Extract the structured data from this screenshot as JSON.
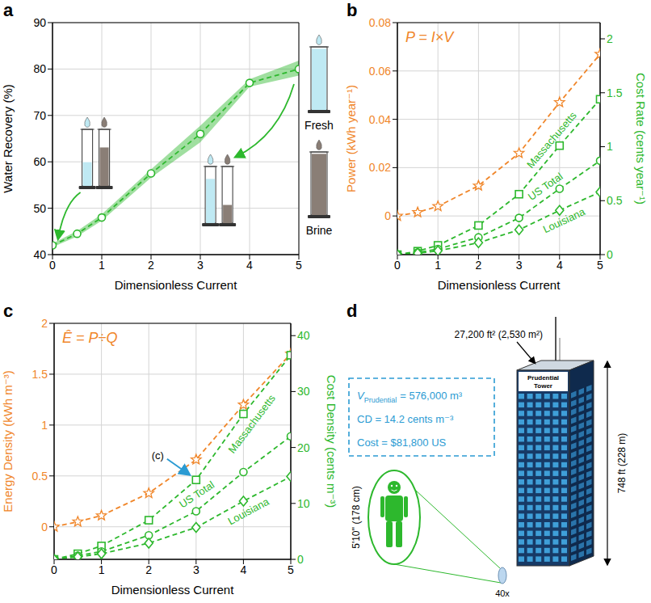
{
  "chart_data": [
    {
      "panel_label": "a",
      "type": "line",
      "x_label": "Dimensionless Current",
      "y_label": "Water Recovery (%)",
      "x": [
        0,
        0.5,
        1,
        2,
        3,
        4,
        5
      ],
      "values": [
        42,
        44.5,
        48,
        57.5,
        66,
        77,
        80
      ],
      "band_lower": [
        41.6,
        43.9,
        47.3,
        56.6,
        64.2,
        76.2,
        78.6
      ],
      "band_upper": [
        42.4,
        45.1,
        48.7,
        58.4,
        67.8,
        77.8,
        81.8
      ],
      "color": "#2db82d",
      "marker": "circle",
      "line_style": "dashed",
      "xlim": [
        0,
        5
      ],
      "xticks": [
        0,
        1,
        2,
        3,
        4,
        5
      ],
      "ylim": [
        40,
        90
      ],
      "yticks": [
        40,
        50,
        60,
        70,
        80,
        90
      ],
      "grid": true,
      "annotations": [
        "Fresh",
        "Brine"
      ]
    },
    {
      "panel_label": "b",
      "type": "line",
      "x_label": "Dimensionless Current",
      "y_label": "Power (kWh year⁻¹)",
      "y2_label": "Cost Rate (cents year⁻¹)",
      "annotations": [
        "P = I×V"
      ],
      "x": [
        0,
        0.5,
        1,
        2,
        3,
        4,
        5
      ],
      "series": [
        {
          "color": "#f0862a",
          "marker": "star",
          "line_style": "dashed",
          "values": [
            0,
            0.0015,
            0.004,
            0.0125,
            0.026,
            0.047,
            0.067
          ]
        },
        {
          "name": "Massachusetts",
          "color": "#2db82d",
          "marker": "square",
          "line_style": "dashed",
          "axis": "y2",
          "values": [
            0,
            0.032,
            0.086,
            0.27,
            0.56,
            1.01,
            1.44
          ]
        },
        {
          "name": "US Total",
          "color": "#2db82d",
          "marker": "circle",
          "line_style": "dashed",
          "axis": "y2",
          "values": [
            0,
            0.02,
            0.052,
            0.16,
            0.34,
            0.61,
            0.87
          ]
        },
        {
          "name": "Louisiana",
          "color": "#2db82d",
          "marker": "diamond",
          "line_style": "dashed",
          "axis": "y2",
          "values": [
            0,
            0.013,
            0.035,
            0.11,
            0.23,
            0.41,
            0.58
          ]
        }
      ],
      "xlim": [
        0,
        5
      ],
      "xticks": [
        0,
        1,
        2,
        3,
        4,
        5
      ],
      "ylim": [
        -0.016,
        0.08
      ],
      "yticks": [
        0,
        0.02,
        0.04,
        0.06,
        0.08
      ],
      "y2lim": [
        0,
        2.15
      ],
      "y2ticks": [
        0,
        0.5,
        1,
        1.5,
        2
      ],
      "grid": true
    },
    {
      "panel_label": "c",
      "type": "line",
      "x_label": "Dimensionless Current",
      "y_label": "Energy Density (kWh m⁻³)",
      "y2_label": "Cost Density (cents m⁻³)",
      "annotations": [
        "Ê = P÷Q",
        "(c)"
      ],
      "x": [
        0,
        0.5,
        1,
        2,
        3,
        4,
        5
      ],
      "series": [
        {
          "color": "#f0862a",
          "marker": "star",
          "line_style": "dashed",
          "values": [
            0,
            0.05,
            0.11,
            0.33,
            0.66,
            1.2,
            1.7
          ]
        },
        {
          "name": "Massachusetts",
          "color": "#2db82d",
          "marker": "square",
          "line_style": "dashed",
          "axis": "y2",
          "values": [
            0,
            1,
            2.4,
            7,
            14.2,
            26,
            36.5
          ]
        },
        {
          "name": "US Total",
          "color": "#2db82d",
          "marker": "circle",
          "line_style": "dashed",
          "axis": "y2",
          "values": [
            0,
            0.65,
            1.4,
            4.3,
            8.6,
            15.6,
            22
          ]
        },
        {
          "name": "Louisiana",
          "color": "#2db82d",
          "marker": "diamond",
          "line_style": "dashed",
          "axis": "y2",
          "values": [
            0,
            0.45,
            1,
            2.9,
            5.7,
            10.4,
            14.8
          ]
        }
      ],
      "xlim": [
        0,
        5
      ],
      "xticks": [
        0,
        1,
        2,
        3,
        4,
        5
      ],
      "ylim": [
        -0.32,
        2
      ],
      "yticks": [
        0,
        0.5,
        1,
        1.5,
        2
      ],
      "y2lim": [
        0,
        42.2
      ],
      "y2ticks": [
        0,
        10,
        20,
        30,
        40
      ],
      "grid": true
    }
  ],
  "diagram": {
    "panel_label": "d",
    "roof_area": "27,200 ft² (2,530 m²)",
    "building_name": "Prudential Tower",
    "height": "748 ft (228 m)",
    "person_height": "5'10'' (178 cm)",
    "magnification": "40x",
    "box": {
      "volume": {
        "symbol": "V",
        "subscript": "Prudential",
        "text": "= 576,000 m³"
      },
      "cost_density": "CD = 14.2 cents m⁻³",
      "cost": "Cost = $81,800 US"
    }
  }
}
